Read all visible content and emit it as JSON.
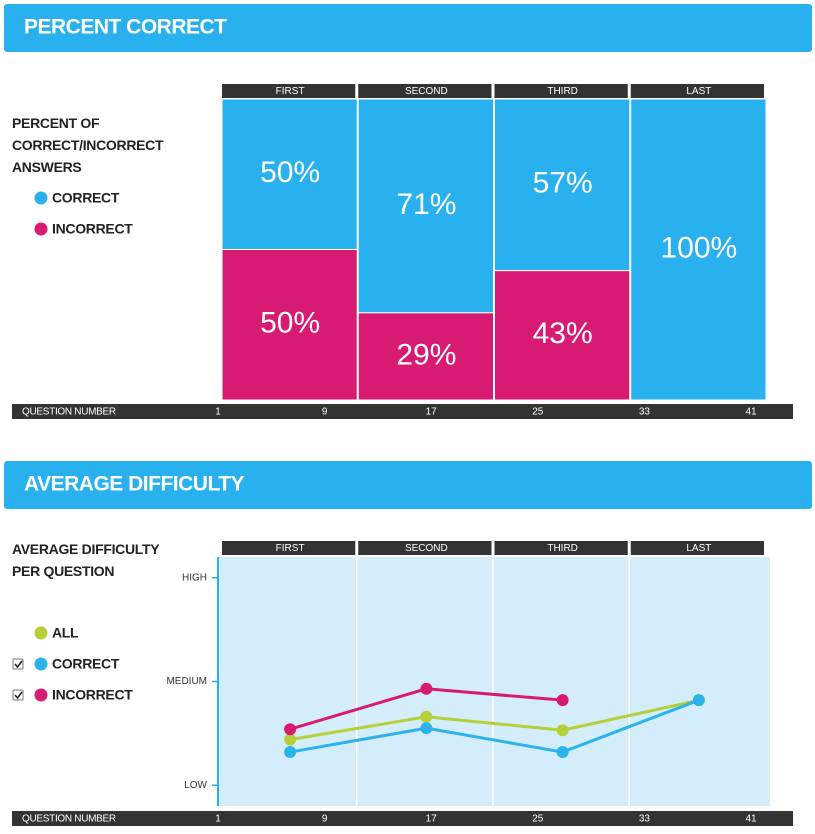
{
  "chart_data": [
    {
      "type": "stacked_bar",
      "title": "PERCENT CORRECT",
      "ylabel": "PERCENT OF CORRECT/INCORRECT ANSWERS",
      "categories": [
        "FIRST",
        "SECOND",
        "THIRD",
        "LAST"
      ],
      "series": [
        {
          "name": "CORRECT",
          "color": "#29b0ee",
          "values": [
            50,
            71,
            57,
            100
          ],
          "value_labels": [
            "50%",
            "71%",
            "57%",
            "100%"
          ]
        },
        {
          "name": "INCORRECT",
          "color": "#d81b72",
          "values": [
            50,
            29,
            43,
            0
          ],
          "value_labels": [
            "50%",
            "29%",
            "43%",
            null
          ]
        }
      ],
      "ylim": [
        0,
        100
      ],
      "xlabel": "QUESTION NUMBER",
      "xlim": [
        1,
        41
      ],
      "xticks": [
        1,
        9,
        17,
        25,
        33,
        41
      ]
    },
    {
      "type": "line",
      "title": "AVERAGE DIFFICULTY",
      "ylabel": "AVERAGE DIFFICULTY PER QUESTION",
      "categories": [
        "FIRST",
        "SECOND",
        "THIRD",
        "LAST"
      ],
      "series": [
        {
          "name": "ALL",
          "color": "#b5cf3a",
          "values": [
            0.44,
            0.66,
            0.53,
            0.82
          ]
        },
        {
          "name": "CORRECT",
          "color": "#2cb3ec",
          "checked": true,
          "values": [
            0.32,
            0.55,
            0.32,
            0.82
          ]
        },
        {
          "name": "INCORRECT",
          "color": "#d81b72",
          "checked": true,
          "values": [
            0.54,
            0.93,
            0.82,
            null
          ]
        }
      ],
      "ylim": [
        -0.2,
        2.2
      ],
      "yticks": [
        {
          "value": 0,
          "label": "LOW"
        },
        {
          "value": 1,
          "label": "MEDIUM"
        },
        {
          "value": 2,
          "label": "HIGH"
        }
      ],
      "xlabel": "QUESTION NUMBER",
      "xlim": [
        1,
        41
      ],
      "xticks": [
        1,
        9,
        17,
        25,
        33,
        41
      ]
    }
  ]
}
